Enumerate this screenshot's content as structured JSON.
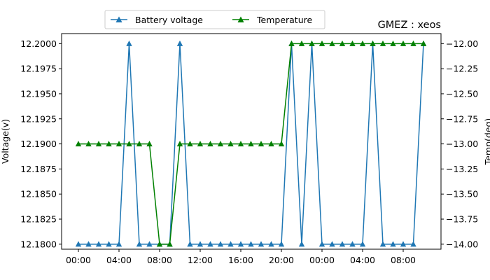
{
  "chart_data": {
    "type": "line",
    "title": "GMEZ : xeos",
    "ylabel_left": "Voltage(v)",
    "ylabel_right": "Temp(deg)",
    "x": [
      "00:00",
      "01:00",
      "02:00",
      "03:00",
      "04:00",
      "05:00",
      "06:00",
      "07:00",
      "08:00",
      "09:00",
      "10:00",
      "11:00",
      "12:00",
      "13:00",
      "14:00",
      "15:00",
      "16:00",
      "17:00",
      "18:00",
      "19:00",
      "20:00",
      "21:00",
      "22:00",
      "23:00",
      "00:00",
      "01:00",
      "02:00",
      "03:00",
      "04:00",
      "05:00",
      "06:00",
      "07:00",
      "08:00",
      "09:00",
      "10:00"
    ],
    "x_tick_labels": [
      "00:00",
      "04:00",
      "08:00",
      "12:00",
      "16:00",
      "20:00",
      "00:00",
      "04:00",
      "08:00"
    ],
    "ylim_left": [
      12.1795,
      12.201
    ],
    "y_left_ticks": [
      "12.1800",
      "12.1825",
      "12.1850",
      "12.1875",
      "12.1900",
      "12.1925",
      "12.1950",
      "12.1975",
      "12.2000"
    ],
    "ylim_right": [
      -14.05,
      -11.9
    ],
    "y_right_ticks": [
      "−14.00",
      "−13.75",
      "−13.50",
      "−13.25",
      "−13.00",
      "−12.75",
      "−12.50",
      "−12.25",
      "−12.00"
    ],
    "grid": false,
    "legend_position": "top-center",
    "series": [
      {
        "name": "Battery voltage",
        "axis": "left",
        "color": "#1f77b4",
        "marker": "triangle",
        "values": [
          12.18,
          12.18,
          12.18,
          12.18,
          12.18,
          12.2,
          12.18,
          12.18,
          12.18,
          12.18,
          12.2,
          12.18,
          12.18,
          12.18,
          12.18,
          12.18,
          12.18,
          12.18,
          12.18,
          12.18,
          12.18,
          12.2,
          12.18,
          12.2,
          12.18,
          12.18,
          12.18,
          12.18,
          12.18,
          12.2,
          12.18,
          12.18,
          12.18,
          12.18,
          12.2
        ]
      },
      {
        "name": "Temperature",
        "axis": "right",
        "color": "#008000",
        "marker": "triangle",
        "values": [
          -13,
          -13,
          -13,
          -13,
          -13,
          -13,
          -13,
          -13,
          -14,
          -14,
          -13,
          -13,
          -13,
          -13,
          -13,
          -13,
          -13,
          -13,
          -13,
          -13,
          -13,
          -12,
          -12,
          -12,
          -12,
          -12,
          -12,
          -12,
          -12,
          -12,
          -12,
          -12,
          -12,
          -12,
          -12
        ]
      }
    ]
  }
}
